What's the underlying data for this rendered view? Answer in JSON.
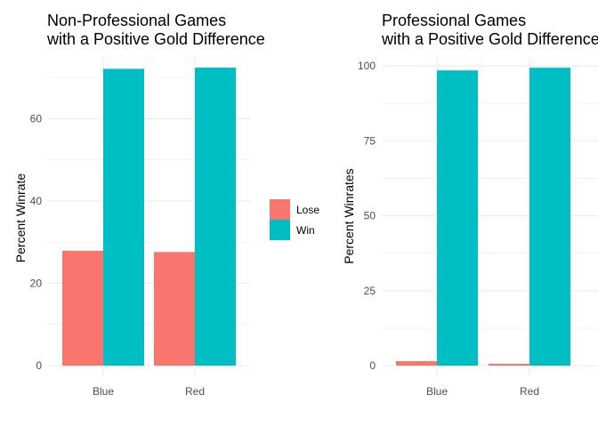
{
  "chart_data": [
    {
      "type": "bar",
      "title_lines": [
        "Non-Professional Games",
        "with a Positive Gold Difference"
      ],
      "categories": [
        "Blue",
        "Red"
      ],
      "series": [
        {
          "name": "Lose",
          "values": [
            27.9,
            27.6
          ]
        },
        {
          "name": "Win",
          "values": [
            72.1,
            72.4
          ]
        }
      ],
      "xlabel": "",
      "ylabel": "Percent Winrate",
      "ylim": [
        0,
        75
      ],
      "yticks": [
        0,
        20,
        40,
        60
      ],
      "grid": true,
      "legend": {
        "title": "",
        "position": "right",
        "entries": [
          "Lose",
          "Win"
        ]
      }
    },
    {
      "type": "bar",
      "title_lines": [
        "Professional Games",
        "with a Positive Gold Difference"
      ],
      "categories": [
        "Blue",
        "Red"
      ],
      "series": [
        {
          "name": "Lose",
          "values": [
            1.5,
            0.6
          ]
        },
        {
          "name": "Win",
          "values": [
            98.5,
            99.4
          ]
        }
      ],
      "xlabel": "",
      "ylabel": "Percent Winrates",
      "ylim": [
        0,
        103
      ],
      "yticks": [
        0,
        25,
        50,
        75,
        100
      ],
      "grid": true
    }
  ],
  "colors": {
    "lose": "#F8766D",
    "win": "#00BFC4",
    "grid": "#ebebeb",
    "tick_text": "#4d4d4d"
  }
}
